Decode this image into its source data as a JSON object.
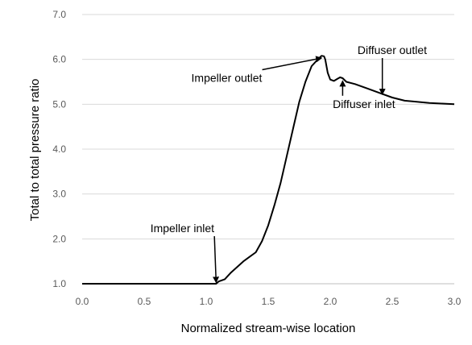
{
  "chart_data": {
    "type": "line",
    "xlabel": "Normalized  stream-wise location",
    "ylabel": "Total to total pressure ratio",
    "xlim": [
      0,
      3
    ],
    "ylim": [
      1,
      7
    ],
    "x_ticks": [
      "0.0",
      "0.5",
      "1.0",
      "1.5",
      "2.0",
      "2.5",
      "3.0"
    ],
    "y_ticks": [
      "1.0",
      "2.0",
      "3.0",
      "4.0",
      "5.0",
      "6.0",
      "7.0"
    ],
    "grid": "horizontal",
    "line_color": "#000000",
    "series": [
      {
        "x": [
          0.0,
          0.5,
          1.0,
          1.08,
          1.1,
          1.15,
          1.2,
          1.3,
          1.35,
          1.4,
          1.45,
          1.5,
          1.55,
          1.6,
          1.65,
          1.7,
          1.75,
          1.8,
          1.85,
          1.9,
          1.93,
          1.95,
          1.96,
          1.98,
          2.0,
          2.03,
          2.06,
          2.08,
          2.1,
          2.13,
          2.2,
          2.3,
          2.4,
          2.5,
          2.6,
          2.8,
          3.0
        ],
        "y": [
          1.0,
          1.0,
          1.0,
          1.0,
          1.05,
          1.1,
          1.25,
          1.5,
          1.6,
          1.7,
          1.95,
          2.3,
          2.75,
          3.25,
          3.85,
          4.45,
          5.05,
          5.5,
          5.85,
          6.0,
          6.08,
          6.07,
          6.0,
          5.7,
          5.55,
          5.52,
          5.57,
          5.6,
          5.58,
          5.5,
          5.45,
          5.35,
          5.25,
          5.15,
          5.08,
          5.03,
          5.0
        ]
      }
    ],
    "annotations": [
      {
        "label": "Impeller inlet",
        "text_x": 0.55,
        "text_y": 2.15,
        "point_x": 1.08,
        "point_y": 1.03
      },
      {
        "label": "Impeller  outlet",
        "text_x": 0.88,
        "text_y": 5.5,
        "point_x": 1.93,
        "point_y": 6.03
      },
      {
        "label": "Diffuser outlet",
        "text_x": 2.22,
        "text_y": 6.12,
        "point_x": 2.42,
        "point_y": 5.22
      },
      {
        "label": "Diffuser inlet",
        "text_x": 2.02,
        "text_y": 4.92,
        "point_x": 2.1,
        "point_y": 5.52
      }
    ]
  }
}
